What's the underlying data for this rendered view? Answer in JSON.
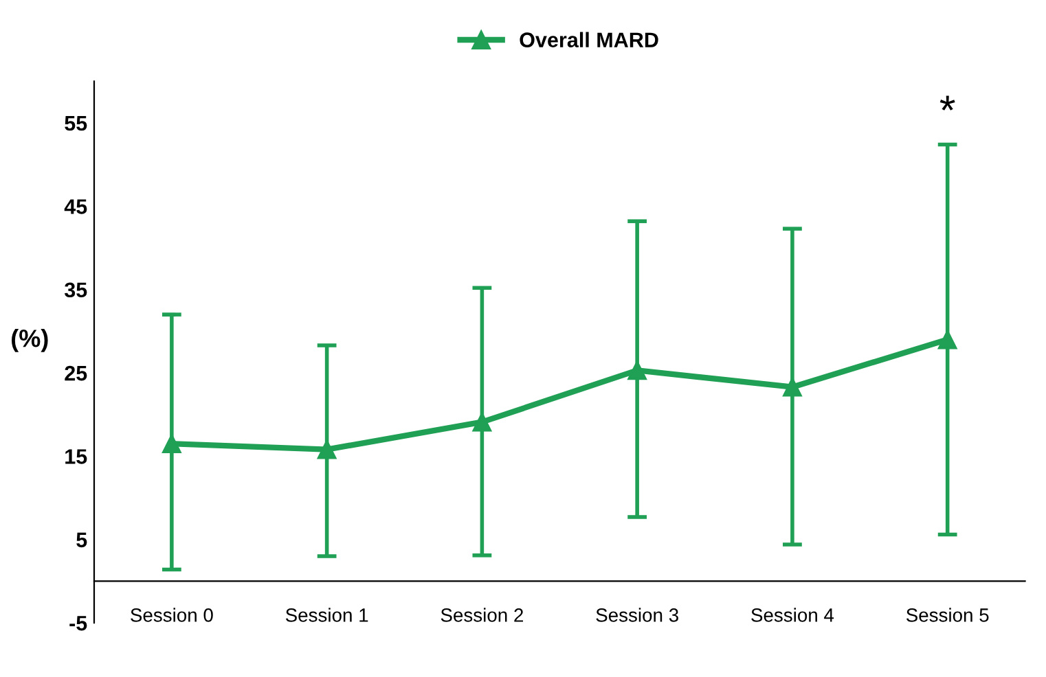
{
  "chart_data": {
    "type": "line",
    "ylabel": "(%)",
    "categories": [
      "Session 0",
      "Session 1",
      "Session 2",
      "Session 3",
      "Session 4",
      "Session 5"
    ],
    "series": [
      {
        "name": "Overall MARD",
        "color": "#1fa055",
        "values": [
          16.5,
          15.8,
          19.1,
          25.3,
          23.3,
          29.0
        ],
        "errors": [
          [
            1.4,
            32.0
          ],
          [
            3.0,
            28.3
          ],
          [
            3.1,
            35.2
          ],
          [
            7.7,
            43.2
          ],
          [
            4.4,
            42.3
          ],
          [
            5.6,
            52.4
          ]
        ]
      }
    ],
    "annotations": [
      "*"
    ],
    "ylim": [
      -5,
      60
    ],
    "yticks": [
      -5,
      5,
      15,
      25,
      35,
      45,
      55
    ],
    "marker": "triangle",
    "line_style": "solid",
    "legend": "top",
    "grid": false
  }
}
